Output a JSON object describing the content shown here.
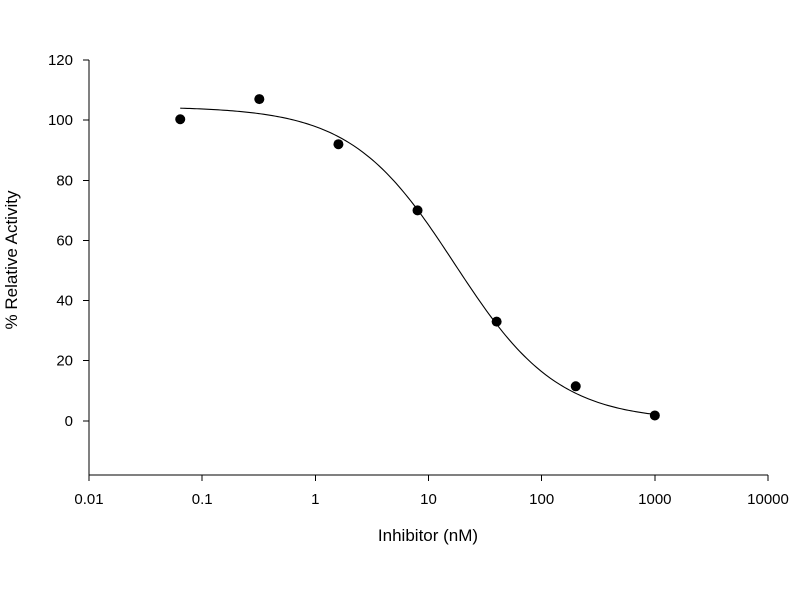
{
  "chart_data": {
    "type": "scatter",
    "title": "",
    "xlabel": "Inhibitor (nM)",
    "ylabel": "% Relative Activity",
    "x_scale": "log",
    "xlim": [
      0.01,
      10000
    ],
    "ylim": [
      -18,
      120
    ],
    "x_ticks": [
      0.01,
      0.1,
      1,
      10,
      100,
      1000,
      10000
    ],
    "x_tick_labels": [
      "0.01",
      "0.1",
      "1",
      "10",
      "100",
      "1000",
      "10000"
    ],
    "y_ticks": [
      0,
      20,
      40,
      60,
      80,
      100,
      120
    ],
    "y_tick_labels": [
      "0",
      "20",
      "40",
      "60",
      "80",
      "100",
      "120"
    ],
    "grid": false,
    "series": [
      {
        "type": "scatter",
        "x": [
          0.064,
          0.32,
          1.6,
          8,
          40,
          200,
          1000
        ],
        "y": [
          100.3,
          107,
          92,
          70,
          33,
          11.5,
          1.8
        ]
      },
      {
        "type": "line",
        "curve": "four-parameter logistic fit",
        "x_range": [
          0.064,
          1000
        ],
        "top": 104.5,
        "bottom": 0,
        "ec50": 17,
        "hill": 0.95
      }
    ]
  }
}
